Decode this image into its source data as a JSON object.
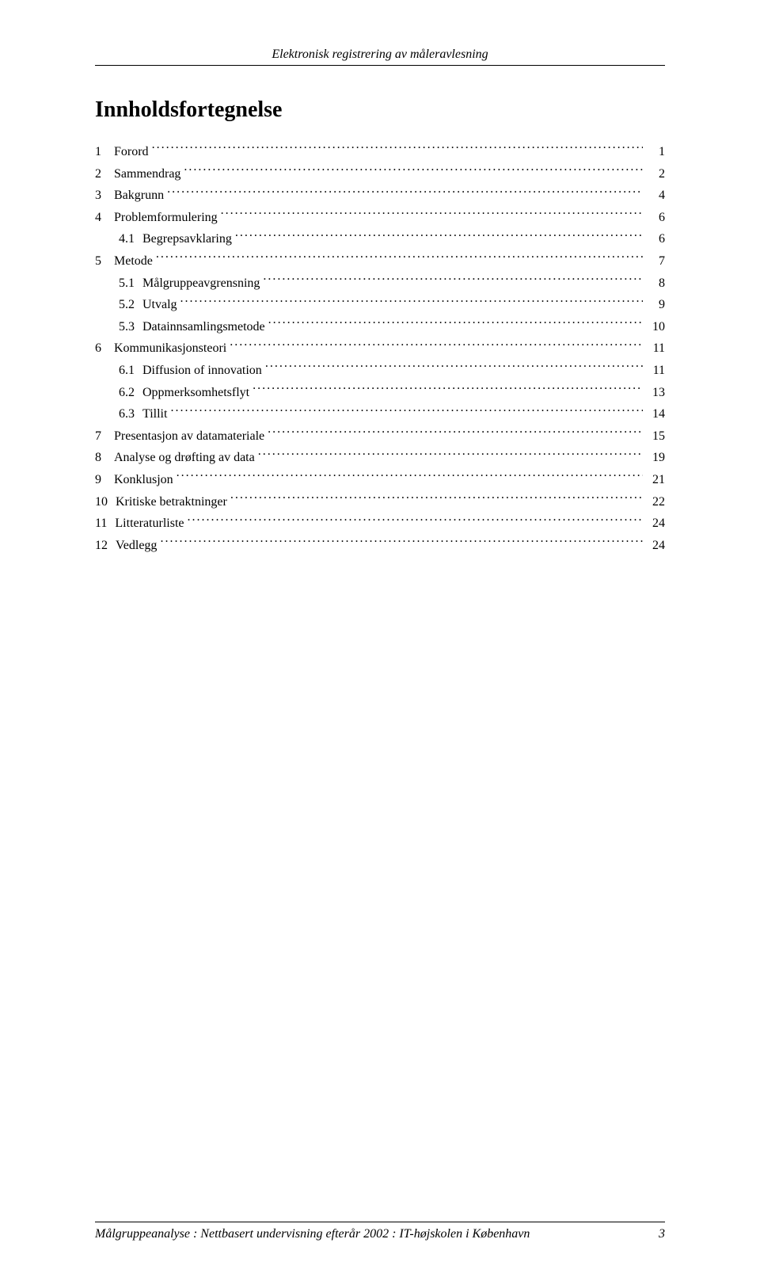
{
  "header": {
    "text": "Elektronisk registrering av måleravlesning"
  },
  "title": "Innholdsfortegnelse",
  "toc": [
    {
      "level": 0,
      "num": "1",
      "label": "Forord",
      "page": "1"
    },
    {
      "level": 0,
      "num": "2",
      "label": "Sammendrag",
      "page": "2"
    },
    {
      "level": 0,
      "num": "3",
      "label": "Bakgrunn",
      "page": "4"
    },
    {
      "level": 0,
      "num": "4",
      "label": "Problemformulering",
      "page": "6"
    },
    {
      "level": 1,
      "num": "4.1",
      "label": "Begrepsavklaring",
      "page": "6"
    },
    {
      "level": 0,
      "num": "5",
      "label": "Metode",
      "page": "7"
    },
    {
      "level": 1,
      "num": "5.1",
      "label": "Målgruppeavgrensning",
      "page": "8"
    },
    {
      "level": 1,
      "num": "5.2",
      "label": "Utvalg",
      "page": "9"
    },
    {
      "level": 1,
      "num": "5.3",
      "label": "Datainnsamlingsmetode",
      "page": "10"
    },
    {
      "level": 0,
      "num": "6",
      "label": "Kommunikasjonsteori",
      "page": "11"
    },
    {
      "level": 1,
      "num": "6.1",
      "label": "Diffusion of innovation",
      "page": "11"
    },
    {
      "level": 1,
      "num": "6.2",
      "label": "Oppmerksomhetsflyt",
      "page": "13"
    },
    {
      "level": 1,
      "num": "6.3",
      "label": "Tillit",
      "page": "14"
    },
    {
      "level": 0,
      "num": "7",
      "label": "Presentasjon av datamateriale",
      "page": "15"
    },
    {
      "level": 0,
      "num": "8",
      "label": "Analyse og drøfting av data",
      "page": "19"
    },
    {
      "level": 0,
      "num": "9",
      "label": "Konklusjon",
      "page": "21"
    },
    {
      "level": 0,
      "num": "10",
      "label": "Kritiske betraktninger",
      "page": "22"
    },
    {
      "level": 0,
      "num": "11",
      "label": "Litteraturliste",
      "page": "24"
    },
    {
      "level": 0,
      "num": "12",
      "label": "Vedlegg",
      "page": "24"
    }
  ],
  "footer": {
    "text": "Målgruppeanalyse : Nettbasert undervisning efterår 2002 : IT-højskolen i København",
    "page_number": "3"
  }
}
